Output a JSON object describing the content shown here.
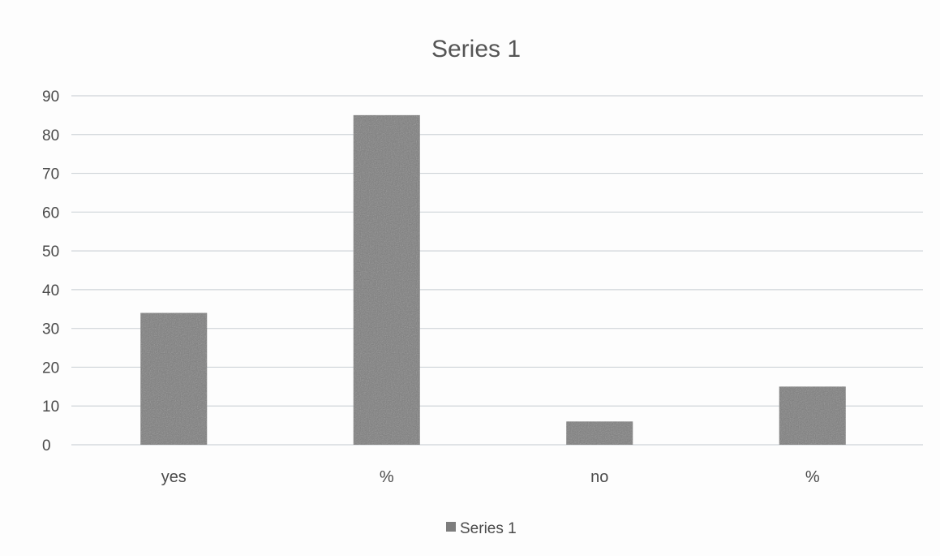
{
  "chart_data": {
    "type": "bar",
    "title": "Series 1",
    "xlabel": "",
    "ylabel": "",
    "categories": [
      "yes",
      "%",
      "no",
      "%"
    ],
    "series": [
      {
        "name": "Series 1",
        "values": [
          34,
          85,
          6,
          15
        ]
      }
    ],
    "ylim": [
      0,
      90
    ],
    "yticks": [
      0,
      10,
      20,
      30,
      40,
      50,
      60,
      70,
      80,
      90
    ],
    "grid": true,
    "legend": "bottom",
    "colors": {
      "bar": "#7d7d7d",
      "grid": "#cfd4d8",
      "text": "#4a4a4a",
      "title": "#555555"
    }
  }
}
